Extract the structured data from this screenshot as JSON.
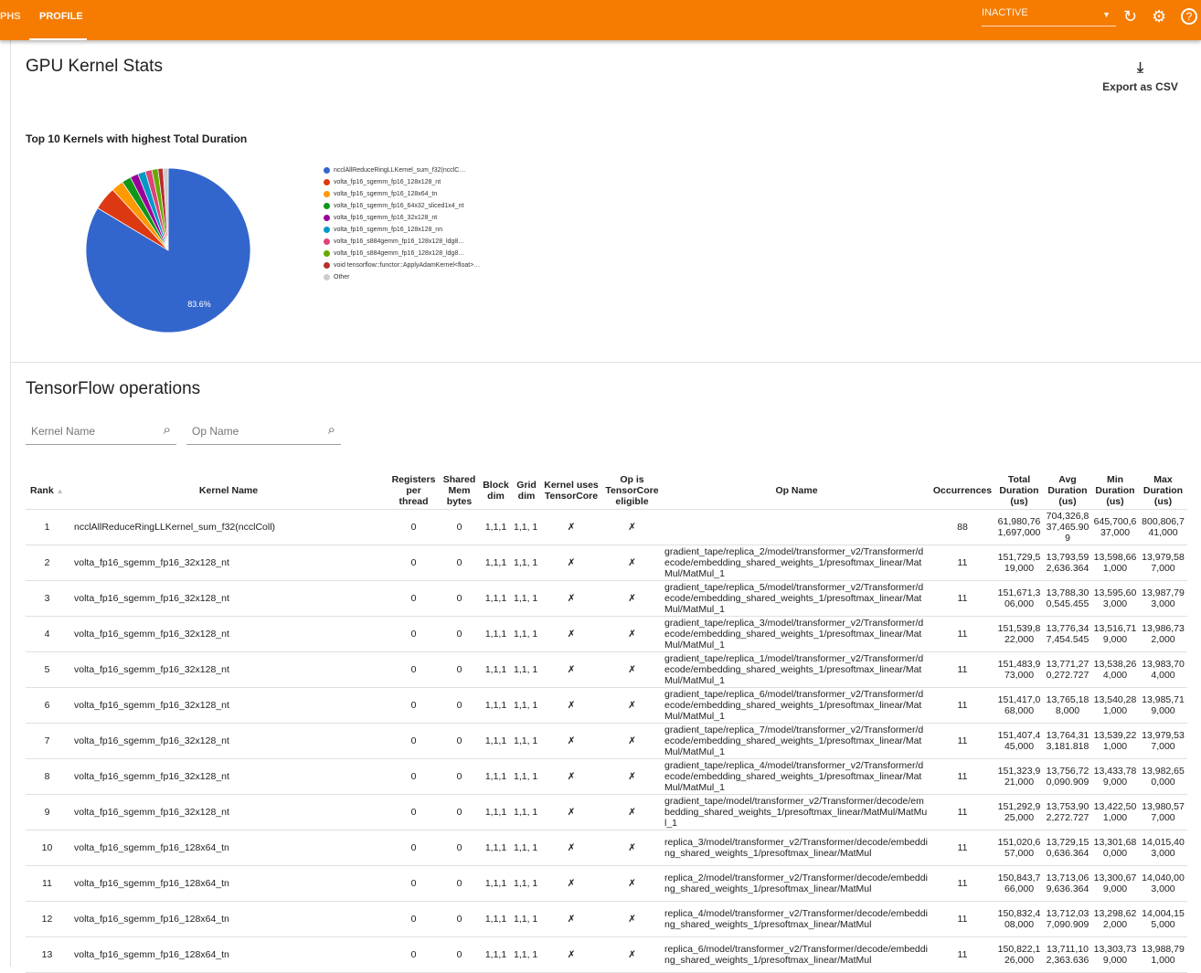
{
  "header": {
    "tabs": [
      {
        "label": "PHS"
      },
      {
        "label": "PROFILE"
      }
    ],
    "run_select": "INACTIVE",
    "accent": "#f57c00"
  },
  "page": {
    "title": "GPU Kernel Stats",
    "export_label": "Export as CSV"
  },
  "chart_data": {
    "type": "pie",
    "title": "Top 10 Kernels with highest Total Duration",
    "slice_label": "83.6%",
    "categories": [
      "ncclAllReduceRingLLKernel_sum_f32(ncclC…",
      "volta_fp16_sgemm_fp16_128x128_nt",
      "volta_fp16_sgemm_fp16_128x64_tn",
      "volta_fp16_sgemm_fp16_64x32_sliced1x4_nt",
      "volta_fp16_sgemm_fp16_32x128_nt",
      "volta_fp16_sgemm_fp16_128x128_nn",
      "volta_fp16_s884gemm_fp16_128x128_ldg8…",
      "volta_fp16_s884gemm_fp16_128x128_ldg8…",
      "void tensorflow::functor::ApplyAdamKernel<float>…",
      "Other"
    ],
    "values": [
      83.6,
      4.6,
      2.4,
      1.8,
      1.6,
      1.5,
      1.3,
      1.2,
      1.0,
      1.0
    ],
    "colors": [
      "#3366cc",
      "#dc3912",
      "#ff9900",
      "#109618",
      "#990099",
      "#0099c6",
      "#dd4477",
      "#66aa00",
      "#b82e2e",
      "#cccccc"
    ],
    "legend_position": "right"
  },
  "ops": {
    "title": "TensorFlow operations",
    "kernel_filter_placeholder": "Kernel Name",
    "op_filter_placeholder": "Op Name",
    "columns": [
      "Rank",
      "Kernel Name",
      "Registers per thread",
      "Shared Mem bytes",
      "Block dim",
      "Grid dim",
      "Kernel uses TensorCore",
      "Op is TensorCore eligible",
      "Op Name",
      "Occurrences",
      "Total Duration (us)",
      "Avg Duration (us)",
      "Min Duration (us)",
      "Max Duration (us)"
    ],
    "sort_indicator": "▲",
    "rows": [
      [
        "1",
        "ncclAllReduceRingLLKernel_sum_f32(ncclColl)",
        "0",
        "0",
        "1,1,1",
        "1,1, 1",
        "✗",
        "✗",
        "",
        "88",
        "61,980,761,697,000",
        "704,326,837,465.909",
        "645,700,637,000",
        "800,806,741,000"
      ],
      [
        "2",
        "volta_fp16_sgemm_fp16_32x128_nt",
        "0",
        "0",
        "1,1,1",
        "1,1, 1",
        "✗",
        "✗",
        "gradient_tape/replica_2/model/transformer_v2/Transformer/decode/embedding_shared_weights_1/presoftmax_linear/MatMul/MatMul_1",
        "11",
        "151,729,519,000",
        "13,793,592,636.364",
        "13,598,661,000",
        "13,979,587,000"
      ],
      [
        "3",
        "volta_fp16_sgemm_fp16_32x128_nt",
        "0",
        "0",
        "1,1,1",
        "1,1, 1",
        "✗",
        "✗",
        "gradient_tape/replica_5/model/transformer_v2/Transformer/decode/embedding_shared_weights_1/presoftmax_linear/MatMul/MatMul_1",
        "11",
        "151,671,306,000",
        "13,788,300,545.455",
        "13,595,603,000",
        "13,987,793,000"
      ],
      [
        "4",
        "volta_fp16_sgemm_fp16_32x128_nt",
        "0",
        "0",
        "1,1,1",
        "1,1, 1",
        "✗",
        "✗",
        "gradient_tape/replica_3/model/transformer_v2/Transformer/decode/embedding_shared_weights_1/presoftmax_linear/MatMul/MatMul_1",
        "11",
        "151,539,822,000",
        "13,776,347,454.545",
        "13,516,719,000",
        "13,986,732,000"
      ],
      [
        "5",
        "volta_fp16_sgemm_fp16_32x128_nt",
        "0",
        "0",
        "1,1,1",
        "1,1, 1",
        "✗",
        "✗",
        "gradient_tape/replica_1/model/transformer_v2/Transformer/decode/embedding_shared_weights_1/presoftmax_linear/MatMul/MatMul_1",
        "11",
        "151,483,973,000",
        "13,771,270,272.727",
        "13,538,264,000",
        "13,983,704,000"
      ],
      [
        "6",
        "volta_fp16_sgemm_fp16_32x128_nt",
        "0",
        "0",
        "1,1,1",
        "1,1, 1",
        "✗",
        "✗",
        "gradient_tape/replica_6/model/transformer_v2/Transformer/decode/embedding_shared_weights_1/presoftmax_linear/MatMul/MatMul_1",
        "11",
        "151,417,068,000",
        "13,765,188,000",
        "13,540,281,000",
        "13,985,719,000"
      ],
      [
        "7",
        "volta_fp16_sgemm_fp16_32x128_nt",
        "0",
        "0",
        "1,1,1",
        "1,1, 1",
        "✗",
        "✗",
        "gradient_tape/replica_7/model/transformer_v2/Transformer/decode/embedding_shared_weights_1/presoftmax_linear/MatMul/MatMul_1",
        "11",
        "151,407,445,000",
        "13,764,313,181.818",
        "13,539,221,000",
        "13,979,537,000"
      ],
      [
        "8",
        "volta_fp16_sgemm_fp16_32x128_nt",
        "0",
        "0",
        "1,1,1",
        "1,1, 1",
        "✗",
        "✗",
        "gradient_tape/replica_4/model/transformer_v2/Transformer/decode/embedding_shared_weights_1/presoftmax_linear/MatMul/MatMul_1",
        "11",
        "151,323,921,000",
        "13,756,720,090.909",
        "13,433,789,000",
        "13,982,650,000"
      ],
      [
        "9",
        "volta_fp16_sgemm_fp16_32x128_nt",
        "0",
        "0",
        "1,1,1",
        "1,1, 1",
        "✗",
        "✗",
        "gradient_tape/model/transformer_v2/Transformer/decode/embedding_shared_weights_1/presoftmax_linear/MatMul/MatMul_1",
        "11",
        "151,292,925,000",
        "13,753,902,272.727",
        "13,422,501,000",
        "13,980,577,000"
      ],
      [
        "10",
        "volta_fp16_sgemm_fp16_128x64_tn",
        "0",
        "0",
        "1,1,1",
        "1,1, 1",
        "✗",
        "✗",
        "replica_3/model/transformer_v2/Transformer/decode/embedding_shared_weights_1/presoftmax_linear/MatMul",
        "11",
        "151,020,657,000",
        "13,729,150,636.364",
        "13,301,680,000",
        "14,015,403,000"
      ],
      [
        "11",
        "volta_fp16_sgemm_fp16_128x64_tn",
        "0",
        "0",
        "1,1,1",
        "1,1, 1",
        "✗",
        "✗",
        "replica_2/model/transformer_v2/Transformer/decode/embedding_shared_weights_1/presoftmax_linear/MatMul",
        "11",
        "150,843,766,000",
        "13,713,069,636.364",
        "13,300,679,000",
        "14,040,003,000"
      ],
      [
        "12",
        "volta_fp16_sgemm_fp16_128x64_tn",
        "0",
        "0",
        "1,1,1",
        "1,1, 1",
        "✗",
        "✗",
        "replica_4/model/transformer_v2/Transformer/decode/embedding_shared_weights_1/presoftmax_linear/MatMul",
        "11",
        "150,832,408,000",
        "13,712,037,090.909",
        "13,298,622,000",
        "14,004,155,000"
      ],
      [
        "13",
        "volta_fp16_sgemm_fp16_128x64_tn",
        "0",
        "0",
        "1,1,1",
        "1,1, 1",
        "✗",
        "✗",
        "replica_6/model/transformer_v2/Transformer/decode/embedding_shared_weights_1/presoftmax_linear/MatMul",
        "11",
        "150,822,126,000",
        "13,711,102,363.636",
        "13,303,739,000",
        "13,988,791,000"
      ]
    ]
  }
}
